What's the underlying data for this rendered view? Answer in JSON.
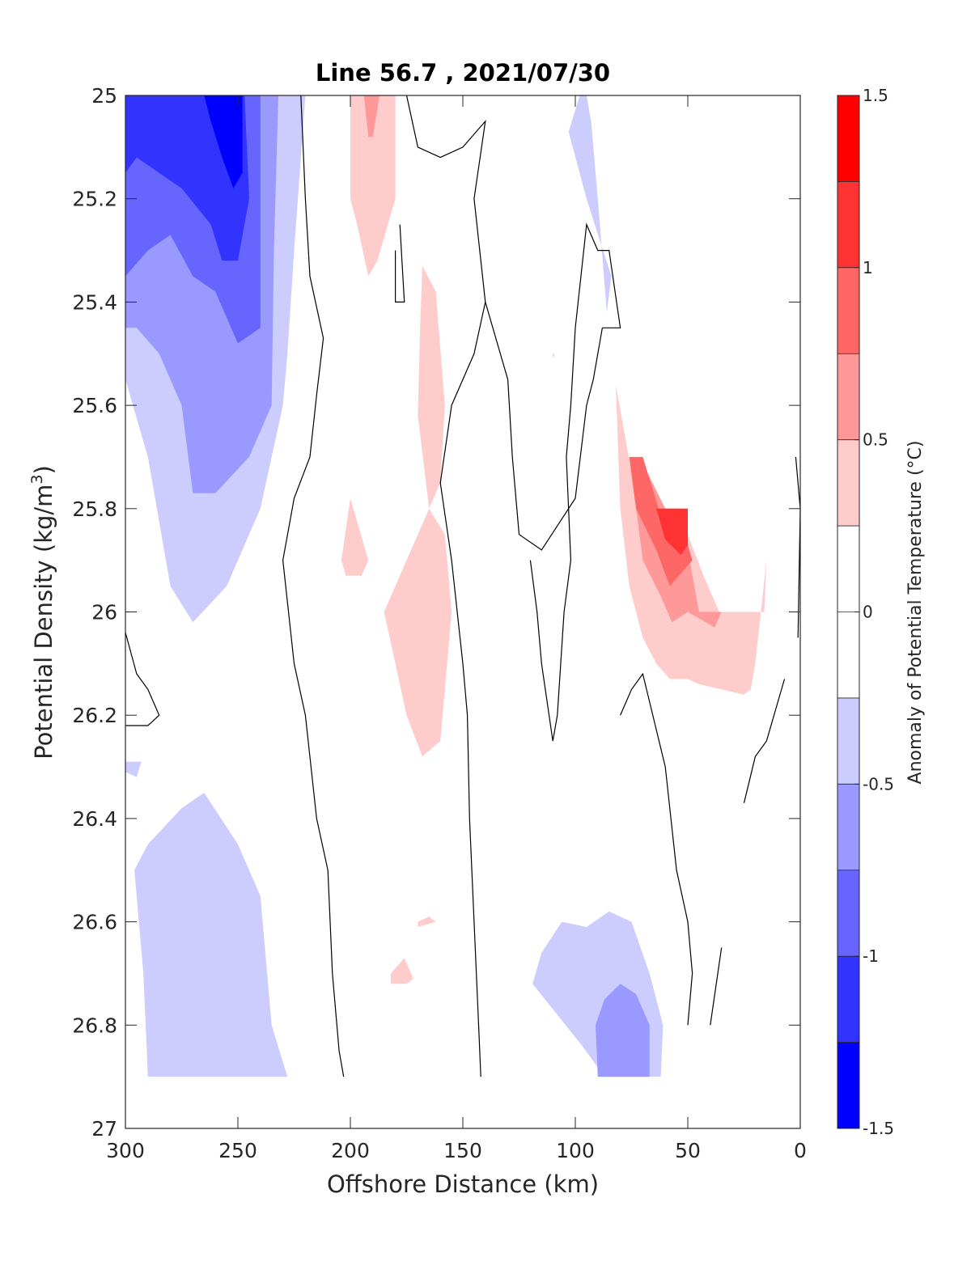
{
  "chart_data": {
    "type": "filled-contour",
    "title": "Line 56.7 , 2021/07/30",
    "xlabel": "Offshore Distance (km)",
    "ylabel_main": "Potential Density (kg/m",
    "ylabel_sup": "3",
    "ylabel_tail": ")",
    "colorbar_label": "Anomaly of Potential Temperature (°C)",
    "xlim": [
      300,
      0
    ],
    "ylim": [
      25,
      27
    ],
    "y_reversed": true,
    "xticks": [
      300,
      250,
      200,
      150,
      100,
      50,
      0
    ],
    "xtick_labels": [
      "300",
      "250",
      "200",
      "150",
      "100",
      "50",
      "0"
    ],
    "yticks": [
      25,
      25.2,
      25.4,
      25.6,
      25.8,
      26,
      26.2,
      26.4,
      26.6,
      26.8,
      27
    ],
    "ytick_labels": [
      "25",
      "25.2",
      "25.4",
      "25.6",
      "25.8",
      "26",
      "26.2",
      "26.4",
      "26.6",
      "26.8",
      "27"
    ],
    "colorbar_range": [
      -1.5,
      1.5
    ],
    "colorbar_ticks": [
      1.5,
      1,
      0.5,
      0,
      -0.5,
      -1,
      -1.5
    ],
    "colorbar_tick_labels": [
      "1.5",
      "1",
      "0.5",
      "0",
      "-0.5",
      "-1",
      "-1.5"
    ],
    "levels": [
      {
        "from": 1.25,
        "to": 1.5,
        "color": "#ff0000"
      },
      {
        "from": 1.0,
        "to": 1.25,
        "color": "#ff3333"
      },
      {
        "from": 0.75,
        "to": 1.0,
        "color": "#ff6666"
      },
      {
        "from": 0.5,
        "to": 0.75,
        "color": "#ff9999"
      },
      {
        "from": 0.25,
        "to": 0.5,
        "color": "#ffcccc"
      },
      {
        "from": 0.0,
        "to": 0.25,
        "color": "#ffffff"
      },
      {
        "from": -0.25,
        "to": 0.0,
        "color": "#ffffff"
      },
      {
        "from": -0.5,
        "to": -0.25,
        "color": "#ccccff"
      },
      {
        "from": -0.75,
        "to": -0.5,
        "color": "#9999ff"
      },
      {
        "from": -1.0,
        "to": -0.75,
        "color": "#6666ff"
      },
      {
        "from": -1.25,
        "to": -1.0,
        "color": "#3333ff"
      },
      {
        "from": -1.5,
        "to": -1.25,
        "color": "#0000ff"
      }
    ],
    "regions": [
      {
        "level": -0.25,
        "color": "#ccccff",
        "points": [
          [
            300,
            25
          ],
          [
            220,
            25
          ],
          [
            225,
            25.3
          ],
          [
            228,
            25.5
          ],
          [
            230,
            25.6
          ],
          [
            240,
            25.8
          ],
          [
            255,
            25.95
          ],
          [
            270,
            26.02
          ],
          [
            280,
            25.95
          ],
          [
            290,
            25.7
          ],
          [
            300,
            25.55
          ]
        ]
      },
      {
        "level": -0.5,
        "color": "#9999ff",
        "points": [
          [
            300,
            25
          ],
          [
            232,
            25
          ],
          [
            234,
            25.3
          ],
          [
            235,
            25.6
          ],
          [
            245,
            25.7
          ],
          [
            260,
            25.77
          ],
          [
            270,
            25.77
          ],
          [
            275,
            25.6
          ],
          [
            285,
            25.5
          ],
          [
            295,
            25.45
          ],
          [
            300,
            25.45
          ]
        ]
      },
      {
        "level": -0.75,
        "color": "#6666ff",
        "points": [
          [
            300,
            25
          ],
          [
            240,
            25
          ],
          [
            240,
            25.45
          ],
          [
            250,
            25.48
          ],
          [
            260,
            25.38
          ],
          [
            270,
            25.35
          ],
          [
            280,
            25.27
          ],
          [
            290,
            25.3
          ],
          [
            300,
            25.35
          ]
        ]
      },
      {
        "level": -1.0,
        "color": "#3333ff",
        "points": [
          [
            300,
            25
          ],
          [
            247,
            25
          ],
          [
            245,
            25.2
          ],
          [
            250,
            25.32
          ],
          [
            257,
            25.32
          ],
          [
            262,
            25.25
          ],
          [
            275,
            25.18
          ],
          [
            285,
            25.15
          ],
          [
            295,
            25.12
          ],
          [
            300,
            25.15
          ]
        ]
      },
      {
        "level": -1.25,
        "color": "#0000ff",
        "points": [
          [
            265,
            25
          ],
          [
            248,
            25
          ],
          [
            248,
            25.15
          ],
          [
            252,
            25.18
          ],
          [
            257,
            25.12
          ],
          [
            262,
            25.05
          ]
        ]
      },
      {
        "level": -0.25,
        "color": "#ccccff",
        "points": [
          [
            290,
            26.9
          ],
          [
            228,
            26.9
          ],
          [
            235,
            26.8
          ],
          [
            240,
            26.55
          ],
          [
            250,
            26.45
          ],
          [
            265,
            26.35
          ],
          [
            275,
            26.38
          ],
          [
            290,
            26.45
          ],
          [
            296,
            26.5
          ],
          [
            292,
            26.7
          ]
        ]
      },
      {
        "level": -0.25,
        "color": "#ccccff",
        "points": [
          [
            300,
            26.29
          ],
          [
            293,
            26.29
          ],
          [
            295,
            26.32
          ],
          [
            300,
            26.31
          ]
        ]
      },
      {
        "level": -0.25,
        "color": "#ccccff",
        "points": [
          [
            98,
            25
          ],
          [
            103,
            25.07
          ],
          [
            95,
            25.2
          ],
          [
            84,
            25.35
          ],
          [
            86,
            25.42
          ],
          [
            90,
            25.2
          ],
          [
            93,
            25.05
          ],
          [
            95,
            25
          ]
        ]
      },
      {
        "level": -0.25,
        "color": "#ccccff",
        "points": [
          [
            119,
            26.72
          ],
          [
            115,
            26.66
          ],
          [
            106,
            26.6
          ],
          [
            95,
            26.61
          ],
          [
            85,
            26.58
          ],
          [
            75,
            26.6
          ],
          [
            67,
            26.7
          ],
          [
            61,
            26.8
          ],
          [
            62,
            26.9
          ],
          [
            87,
            26.9
          ],
          [
            97,
            26.84
          ]
        ]
      },
      {
        "level": -0.5,
        "color": "#9999ff",
        "points": [
          [
            90,
            26.9
          ],
          [
            67,
            26.9
          ],
          [
            67,
            26.8
          ],
          [
            73,
            26.74
          ],
          [
            80,
            26.72
          ],
          [
            87,
            26.75
          ],
          [
            91,
            26.8
          ]
        ]
      },
      {
        "level": 0.25,
        "color": "#ffcccc",
        "points": [
          [
            200,
            25
          ],
          [
            180,
            25
          ],
          [
            180,
            25.2
          ],
          [
            188,
            25.32
          ],
          [
            192,
            25.35
          ],
          [
            197,
            25.25
          ],
          [
            200,
            25.2
          ]
        ]
      },
      {
        "level": 0.5,
        "color": "#ff9999",
        "points": [
          [
            194,
            25
          ],
          [
            187,
            25
          ],
          [
            190,
            25.08
          ],
          [
            192,
            25.08
          ]
        ]
      },
      {
        "level": 0.25,
        "color": "#ffcccc",
        "points": [
          [
            168,
            25.33
          ],
          [
            162,
            25.38
          ],
          [
            158,
            25.6
          ],
          [
            160,
            25.75
          ],
          [
            165,
            25.8
          ],
          [
            170,
            25.62
          ],
          [
            169,
            25.45
          ]
        ]
      },
      {
        "level": 0.25,
        "color": "#ffcccc",
        "points": [
          [
            165,
            25.8
          ],
          [
            185,
            26
          ],
          [
            180,
            26.1
          ],
          [
            175,
            26.2
          ],
          [
            168,
            26.28
          ],
          [
            160,
            26.25
          ],
          [
            155,
            26
          ],
          [
            158,
            25.85
          ]
        ]
      },
      {
        "level": 0.25,
        "color": "#ffcccc",
        "points": [
          [
            200,
            25.78
          ],
          [
            192,
            25.9
          ],
          [
            195,
            25.93
          ],
          [
            202,
            25.93
          ],
          [
            204,
            25.9
          ]
        ]
      },
      {
        "level": 0.25,
        "color": "#ffcccc",
        "points": [
          [
            170,
            26.6
          ],
          [
            165,
            26.59
          ],
          [
            162,
            26.6
          ],
          [
            170,
            26.61
          ]
        ]
      },
      {
        "level": 0.25,
        "color": "#ffcccc",
        "points": [
          [
            182,
            26.7
          ],
          [
            176,
            26.67
          ],
          [
            172,
            26.71
          ],
          [
            175,
            26.72
          ],
          [
            182,
            26.72
          ]
        ]
      },
      {
        "level": 0.25,
        "color": "#ffcccc",
        "points": [
          [
            82,
            25.56
          ],
          [
            75,
            25.73
          ],
          [
            65,
            25.8
          ],
          [
            50,
            25.85
          ],
          [
            43,
            25.93
          ],
          [
            36,
            26
          ],
          [
            16,
            26
          ],
          [
            15,
            25.9
          ],
          [
            20,
            26.1
          ],
          [
            22,
            26.15
          ],
          [
            25,
            26.16
          ],
          [
            35,
            26.15
          ],
          [
            45,
            26.14
          ],
          [
            50,
            26.13
          ],
          [
            58,
            26.13
          ],
          [
            64,
            26.1
          ],
          [
            70,
            26.05
          ],
          [
            76,
            25.95
          ],
          [
            80,
            25.8
          ]
        ]
      },
      {
        "level": 0.5,
        "color": "#ff9999",
        "points": [
          [
            76,
            25.7
          ],
          [
            68,
            25.73
          ],
          [
            60,
            25.8
          ],
          [
            52,
            25.8
          ],
          [
            50,
            25.88
          ],
          [
            45,
            26
          ],
          [
            35,
            26
          ],
          [
            38,
            26.03
          ],
          [
            42,
            26.02
          ],
          [
            50,
            26
          ],
          [
            57,
            26.02
          ],
          [
            62,
            25.97
          ],
          [
            70,
            25.9
          ],
          [
            73,
            25.8
          ]
        ]
      },
      {
        "level": 0.75,
        "color": "#ff6666",
        "points": [
          [
            76,
            25.7
          ],
          [
            70,
            25.7
          ],
          [
            63,
            25.8
          ],
          [
            54,
            25.8
          ],
          [
            50,
            25.87
          ],
          [
            48,
            25.9
          ],
          [
            58,
            25.95
          ],
          [
            64,
            25.88
          ],
          [
            73,
            25.8
          ]
        ]
      },
      {
        "level": 1.0,
        "color": "#ff3333",
        "points": [
          [
            64,
            25.8
          ],
          [
            50,
            25.8
          ],
          [
            50,
            25.87
          ],
          [
            53,
            25.89
          ],
          [
            60,
            25.86
          ]
        ]
      },
      {
        "level": 0.25,
        "color": "#ffcccc",
        "points": [
          [
            110,
            25.5
          ],
          [
            109,
            25.5
          ],
          [
            110,
            25.51
          ]
        ]
      }
    ],
    "contours": [
      [
        [
          222,
          25
        ],
        [
          220,
          25.2
        ],
        [
          218,
          25.35
        ],
        [
          212,
          25.47
        ],
        [
          215,
          25.58
        ],
        [
          218,
          25.7
        ],
        [
          225,
          25.78
        ],
        [
          230,
          25.9
        ],
        [
          225,
          26.1
        ],
        [
          220,
          26.2
        ],
        [
          215,
          26.4
        ],
        [
          210,
          26.5
        ],
        [
          208,
          26.7
        ],
        [
          205,
          26.85
        ],
        [
          203,
          26.9
        ]
      ],
      [
        [
          175,
          25
        ],
        [
          170,
          25.1
        ],
        [
          160,
          25.12
        ],
        [
          150,
          25.1
        ],
        [
          140,
          25.05
        ],
        [
          145,
          25.2
        ],
        [
          140,
          25.4
        ],
        [
          145,
          25.5
        ],
        [
          155,
          25.6
        ],
        [
          160,
          25.75
        ],
        [
          155,
          25.9
        ],
        [
          150,
          26.1
        ],
        [
          148,
          26.2
        ],
        [
          147,
          26.4
        ],
        [
          145,
          26.6
        ],
        [
          143,
          26.8
        ],
        [
          142,
          26.9
        ]
      ],
      [
        [
          178,
          25.25
        ],
        [
          176,
          25.4
        ],
        [
          180,
          25.4
        ],
        [
          180,
          25.3
        ]
      ],
      [
        [
          140,
          25.4
        ],
        [
          130,
          25.55
        ],
        [
          128,
          25.7
        ],
        [
          125,
          25.85
        ],
        [
          115,
          25.88
        ],
        [
          100,
          25.78
        ],
        [
          95,
          25.6
        ],
        [
          92,
          25.55
        ],
        [
          88,
          25.45
        ],
        [
          80,
          25.45
        ],
        [
          85,
          25.3
        ],
        [
          90,
          25.3
        ],
        [
          95,
          25.25
        ],
        [
          100,
          25.45
        ],
        [
          102,
          25.6
        ],
        [
          104,
          25.7
        ],
        [
          102,
          25.9
        ],
        [
          105,
          26
        ],
        [
          108,
          26.2
        ],
        [
          110,
          26.25
        ],
        [
          115,
          26.1
        ],
        [
          117,
          26.0
        ],
        [
          120,
          25.9
        ]
      ],
      [
        [
          80,
          26.2
        ],
        [
          75,
          26.15
        ],
        [
          70,
          26.12
        ],
        [
          60,
          26.3
        ],
        [
          55,
          26.5
        ],
        [
          50,
          26.6
        ],
        [
          48,
          26.7
        ],
        [
          50,
          26.8
        ]
      ],
      [
        [
          300,
          26.04
        ],
        [
          295,
          26.12
        ],
        [
          290,
          26.15
        ],
        [
          285,
          26.2
        ],
        [
          290,
          26.22
        ],
        [
          300,
          26.22
        ]
      ],
      [
        [
          2,
          25.7
        ],
        [
          0,
          25.8
        ],
        [
          1,
          26.05
        ]
      ],
      [
        [
          7,
          26.13
        ],
        [
          15,
          26.25
        ],
        [
          20,
          26.28
        ],
        [
          25,
          26.37
        ]
      ],
      [
        [
          35,
          26.65
        ],
        [
          40,
          26.8
        ]
      ]
    ]
  }
}
